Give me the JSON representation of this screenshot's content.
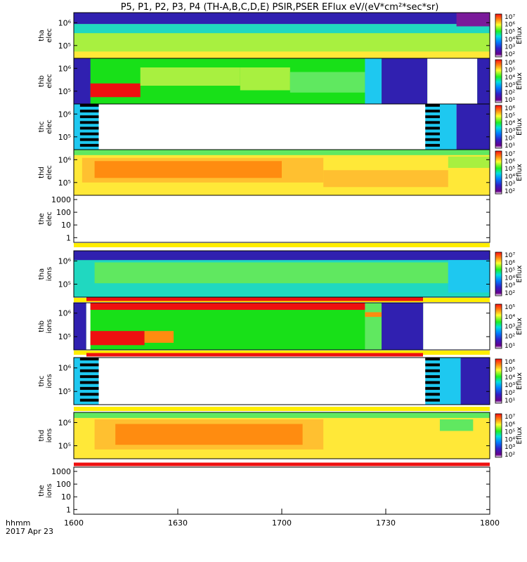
{
  "title": "P5, P1, P2, P3, P4 (TH-A,B,C,D,E) PSIR,PSER EFlux eV/(eV*cm²*sec*sr)",
  "time_axis": {
    "ticks": [
      "1600",
      "1630",
      "1700",
      "1730",
      "1800"
    ],
    "label_line1": "hhmm",
    "label_line2": "2017 Apr 23"
  },
  "colorbar_label": "Eflux",
  "chart_data": [
    {
      "type": "heatmap",
      "probe": "tha",
      "species": "elec",
      "ylabel": [
        "tha",
        "elec"
      ],
      "yticks": [
        "10⁵",
        "10⁶"
      ],
      "colorbar": [
        "10²",
        "10³",
        "10⁴",
        "10⁵",
        "10⁶",
        "10⁷"
      ],
      "flags": []
    },
    {
      "type": "heatmap",
      "probe": "thb",
      "species": "elec",
      "ylabel": [
        "thb",
        "elec"
      ],
      "yticks": [
        "10⁵",
        "10⁶"
      ],
      "colorbar": [
        "10¹",
        "10²",
        "10³",
        "10⁴",
        "10⁵",
        "10⁶"
      ],
      "flags": []
    },
    {
      "type": "heatmap",
      "probe": "thc",
      "species": "elec",
      "ylabel": [
        "thc",
        "elec"
      ],
      "yticks": [
        "10⁵",
        "10⁶"
      ],
      "colorbar": [
        "10¹",
        "10²",
        "10³",
        "10⁴",
        "10⁵",
        "10⁶"
      ],
      "flags": []
    },
    {
      "type": "heatmap",
      "probe": "thd",
      "species": "elec",
      "ylabel": [
        "thd",
        "elec"
      ],
      "yticks": [
        "10⁵",
        "10⁶"
      ],
      "colorbar": [
        "10²",
        "10³",
        "10⁴",
        "10⁵",
        "10⁶",
        "10⁷"
      ],
      "flags": []
    },
    {
      "type": "heatmap",
      "probe": "the",
      "species": "elec",
      "ylabel": [
        "the",
        "elec"
      ],
      "yticks": [
        "1",
        "10",
        "100",
        "1000"
      ],
      "colorbar": [],
      "flags": [
        "yellow"
      ]
    },
    {
      "type": "heatmap",
      "probe": "tha",
      "species": "ions",
      "ylabel": [
        "tha",
        "ions"
      ],
      "yticks": [
        "10⁵",
        "10⁶"
      ],
      "colorbar": [
        "10²",
        "10³",
        "10⁴",
        "10⁵",
        "10⁶",
        "10⁷"
      ],
      "flags": [
        "yellow",
        "red"
      ]
    },
    {
      "type": "heatmap",
      "probe": "thb",
      "species": "ions",
      "ylabel": [
        "thb",
        "ions"
      ],
      "yticks": [
        "10⁵",
        "10⁶"
      ],
      "colorbar": [
        "10¹",
        "10²",
        "10³",
        "10⁴",
        "10⁵"
      ],
      "flags": [
        "yellow",
        "red"
      ]
    },
    {
      "type": "heatmap",
      "probe": "thc",
      "species": "ions",
      "ylabel": [
        "thc",
        "ions"
      ],
      "yticks": [
        "10⁵",
        "10⁶"
      ],
      "colorbar": [
        "10¹",
        "10²",
        "10³",
        "10⁴",
        "10⁵",
        "10⁶"
      ],
      "flags": [
        "yellow"
      ]
    },
    {
      "type": "heatmap",
      "probe": "thd",
      "species": "ions",
      "ylabel": [
        "thd",
        "ions"
      ],
      "yticks": [
        "10⁵",
        "10⁶"
      ],
      "colorbar": [
        "10²",
        "10³",
        "10⁴",
        "10⁵",
        "10⁶",
        "10⁷"
      ],
      "flags": [
        "red"
      ]
    },
    {
      "type": "heatmap",
      "probe": "the",
      "species": "ions",
      "ylabel": [
        "the",
        "ions"
      ],
      "yticks": [
        "1",
        "10",
        "100",
        "1000"
      ],
      "colorbar": [],
      "flags": []
    }
  ]
}
